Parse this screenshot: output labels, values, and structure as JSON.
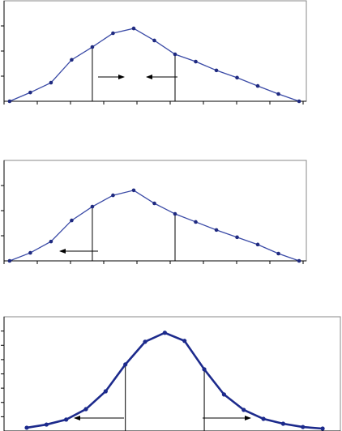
{
  "chart_data": [
    {
      "type": "line",
      "color": "#3a4aa6",
      "marker_color": "#1f2a80",
      "x": [
        0,
        1,
        2,
        3,
        4,
        5,
        6,
        7,
        8,
        9,
        10,
        11,
        12,
        13,
        14
      ],
      "values": [
        0,
        0.35,
        0.74,
        1.65,
        2.16,
        2.71,
        2.9,
        2.42,
        1.87,
        1.58,
        1.23,
        0.94,
        0.61,
        0.29,
        0
      ],
      "xlim": [
        -0.27,
        14.35
      ],
      "ylim": [
        0,
        4
      ],
      "vlines": [
        4,
        8
      ]
    },
    {
      "type": "line",
      "color": "#3a4aa6",
      "marker_color": "#1f2a80",
      "x": [
        0,
        1,
        2,
        3,
        4,
        5,
        6,
        7,
        8,
        9,
        10,
        11,
        12,
        13,
        14
      ],
      "values": [
        0,
        0.32,
        0.77,
        1.61,
        2.16,
        2.61,
        2.81,
        2.29,
        1.87,
        1.55,
        1.23,
        0.94,
        0.65,
        0.29,
        0
      ],
      "xlim": [
        -0.27,
        14.35
      ],
      "ylim": [
        0,
        4
      ],
      "vlines": [
        4,
        8
      ]
    },
    {
      "type": "line",
      "color": "#1c2a8c",
      "marker_color": "#1c2a8c",
      "x": [
        0,
        1,
        2,
        3,
        4,
        5,
        6,
        7,
        8,
        9,
        10,
        11,
        12,
        13,
        14,
        15
      ],
      "values": [
        0.23,
        0.45,
        0.8,
        1.53,
        2.78,
        4.66,
        6.25,
        6.88,
        6.31,
        4.32,
        2.56,
        1.48,
        0.85,
        0.51,
        0.28,
        0.17
      ],
      "xlim": [
        -1.15,
        15.9
      ],
      "ylim": [
        0,
        8
      ],
      "vlines": [
        5,
        9
      ]
    }
  ]
}
